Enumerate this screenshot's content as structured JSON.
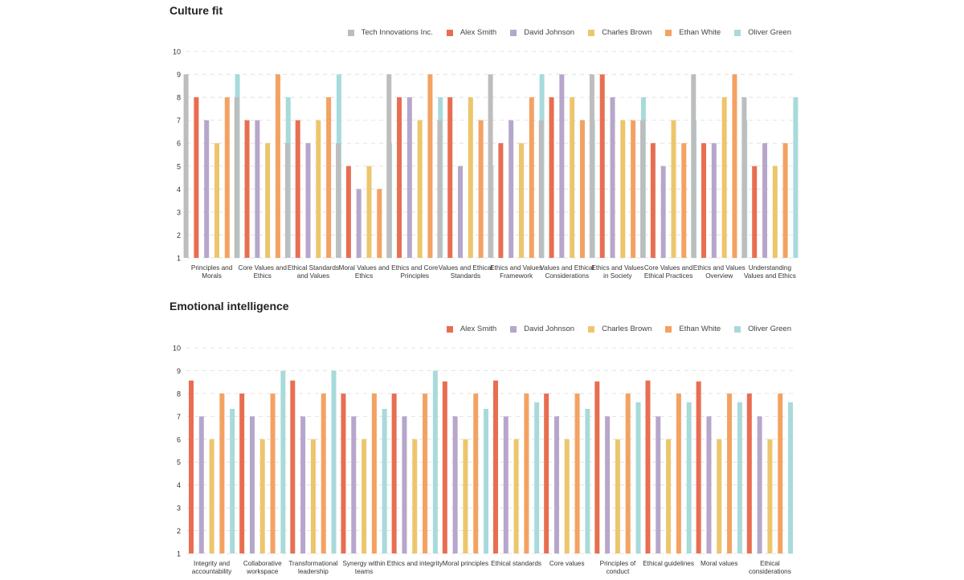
{
  "series_colors": {
    "Tech Innovations Inc.": "#bdbdbd",
    "Alex Smith": "#e86e52",
    "David Johnson": "#b7a6cb",
    "Charles Brown": "#ecc66c",
    "Ethan White": "#f3a262",
    "Oliver Green": "#a8dadb"
  },
  "chart_data": [
    {
      "type": "bar",
      "title": "Culture fit",
      "xlabel": "",
      "ylabel": "",
      "ylim": [
        1,
        10
      ],
      "yticks": [
        1,
        2,
        3,
        4,
        5,
        6,
        7,
        8,
        9,
        10
      ],
      "grid": true,
      "legend_position": "top-right",
      "categories": [
        "Principles and Morals",
        "Core Values and Ethics",
        "Ethical Standards and Values",
        "Moral Values and Ethics",
        "Ethics and Core Principles",
        "Values and Ethical Standards",
        "Ethics and Values Framework",
        "Values and Ethical Considerations",
        "Ethics and Values in Society",
        "Core Values and Ethical Practices",
        "Ethics and Values Overview",
        "Understanding Values and Ethics"
      ],
      "category_lines": [
        [
          "Principles and",
          "Morals"
        ],
        [
          "Core Values and",
          "Ethics"
        ],
        [
          "Ethical Standards",
          "and Values"
        ],
        [
          "Moral Values and",
          "Ethics"
        ],
        [
          "Ethics and Core",
          "Principles"
        ],
        [
          "Values and Ethical",
          "Standards"
        ],
        [
          "Ethics and Values",
          "Framework"
        ],
        [
          "Values and Ethical",
          "Considerations"
        ],
        [
          "Ethics and Values",
          "in Society"
        ],
        [
          "Core Values and",
          "Ethical Practices"
        ],
        [
          "Ethics and Values",
          "Overview"
        ],
        [
          "Understanding",
          "Values and Ethics"
        ]
      ],
      "series": [
        {
          "name": "Tech Innovations Inc.",
          "values": [
            9,
            8,
            6,
            6,
            9,
            7,
            9,
            7,
            9,
            7,
            9,
            8
          ]
        },
        {
          "name": "Alex Smith",
          "values": [
            8,
            7,
            7,
            5,
            8,
            8,
            6,
            8,
            9,
            6,
            6,
            5
          ]
        },
        {
          "name": "David Johnson",
          "values": [
            7,
            7,
            6,
            4,
            8,
            5,
            7,
            9,
            8,
            5,
            6,
            6
          ]
        },
        {
          "name": "Charles Brown",
          "values": [
            6,
            6,
            7,
            5,
            7,
            8,
            6,
            8,
            7,
            7,
            8,
            5
          ]
        },
        {
          "name": "Ethan White",
          "values": [
            8,
            9,
            8,
            4,
            9,
            7,
            8,
            7,
            7,
            6,
            9,
            6
          ]
        },
        {
          "name": "Oliver Green",
          "values": [
            9,
            8,
            9,
            6,
            8,
            5,
            9,
            7,
            8,
            7,
            7,
            8
          ]
        }
      ]
    },
    {
      "type": "bar",
      "title": "Emotional intelligence",
      "xlabel": "",
      "ylabel": "",
      "ylim": [
        1,
        10
      ],
      "yticks": [
        1,
        2,
        3,
        4,
        5,
        6,
        7,
        8,
        9,
        10
      ],
      "grid": true,
      "legend_position": "top-right",
      "categories": [
        "Integrity and accountability",
        "Collaborative workspace",
        "Transformational leadership",
        "Synergy within teams",
        "Ethics and integrity",
        "Moral principles",
        "Ethical standards",
        "Core values",
        "Principles of conduct",
        "Ethical guidelines",
        "Moral values",
        "Ethical considerations"
      ],
      "category_lines": [
        [
          "Integrity and",
          "accountability"
        ],
        [
          "Collaborative",
          "workspace"
        ],
        [
          "Transformational",
          "leadership"
        ],
        [
          "Synergy within",
          "teams"
        ],
        [
          "Ethics and integrity"
        ],
        [
          "Moral principles"
        ],
        [
          "Ethical standards"
        ],
        [
          "Core values"
        ],
        [
          "Principles of",
          "conduct"
        ],
        [
          "Ethical guidelines"
        ],
        [
          "Moral values"
        ],
        [
          "Ethical",
          "considerations"
        ]
      ],
      "series": [
        {
          "name": "Alex Smith",
          "values": [
            8.57,
            8,
            8.57,
            8,
            8,
            8.53,
            8.57,
            8,
            8.53,
            8.57,
            8.53,
            8
          ]
        },
        {
          "name": "David Johnson",
          "values": [
            7,
            7,
            7,
            7,
            7,
            7,
            7,
            7,
            7,
            7,
            7,
            7
          ]
        },
        {
          "name": "Charles Brown",
          "values": [
            6,
            6,
            6,
            6,
            6,
            6,
            6,
            6,
            6,
            6,
            6,
            6
          ]
        },
        {
          "name": "Ethan White",
          "values": [
            8,
            8,
            8,
            8,
            8,
            8,
            8,
            8,
            8,
            8,
            8,
            8
          ]
        },
        {
          "name": "Oliver Green",
          "values": [
            7.33,
            9,
            9,
            7.33,
            9,
            7.33,
            7.62,
            7.33,
            7.62,
            7.62,
            7.62,
            7.62
          ]
        }
      ]
    }
  ]
}
